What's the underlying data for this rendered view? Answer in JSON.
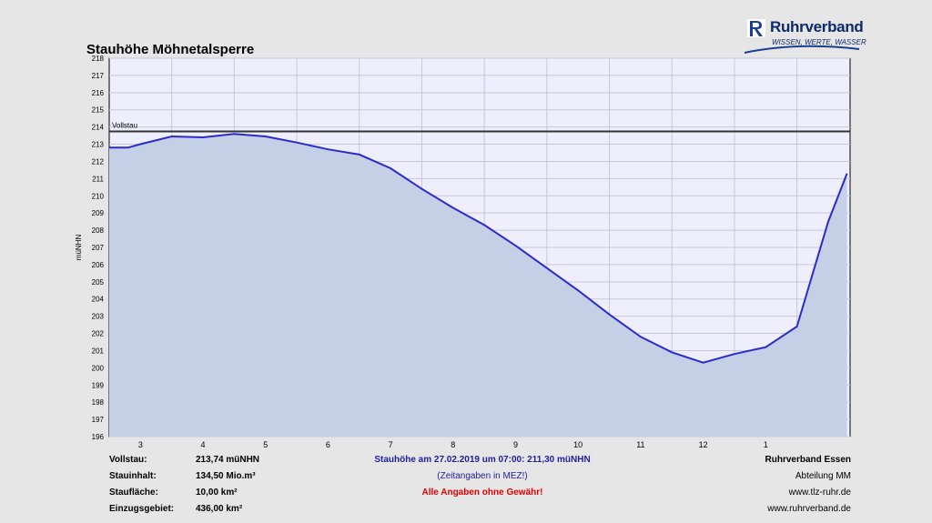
{
  "logo": {
    "name": "Ruhrverband",
    "tagline": "WISSEN, WERTE, WASSER"
  },
  "chart_data": {
    "type": "area",
    "title": "Stauhöhe Möhnetalsperre",
    "ylabel": "müNHN",
    "ylim": [
      196,
      218
    ],
    "yticks": [
      196,
      197,
      198,
      199,
      200,
      201,
      202,
      203,
      204,
      205,
      206,
      207,
      208,
      209,
      210,
      211,
      212,
      213,
      214,
      215,
      216,
      217,
      218
    ],
    "x_categories": [
      "3",
      "4",
      "5",
      "6",
      "7",
      "8",
      "9",
      "10",
      "11",
      "12",
      "1"
    ],
    "reference_line": {
      "label": "Vollstau",
      "value": 213.74
    },
    "grid": true,
    "fill_color": "#c5cfe6",
    "line_color": "#2b2bcc",
    "series": [
      {
        "x": [
          0,
          0.3,
          0.5,
          1,
          1.5,
          2,
          2.5,
          3,
          3.5,
          4,
          4.5,
          5,
          5.5,
          6,
          6.5,
          7,
          7.5,
          8,
          8.5,
          9,
          9.5,
          10,
          10.5,
          11,
          11.5,
          11.8
        ],
        "values": [
          212.8,
          212.8,
          213.0,
          213.45,
          213.4,
          213.6,
          213.45,
          213.1,
          212.7,
          212.4,
          211.6,
          210.4,
          209.3,
          208.3,
          207.1,
          205.8,
          204.5,
          203.1,
          201.8,
          200.9,
          200.3,
          200.8,
          201.2,
          202.4,
          208.5,
          211.3
        ]
      }
    ]
  },
  "info_left": [
    {
      "label": "Vollstau:",
      "value": "213,74 müNHN"
    },
    {
      "label": "Stauinhalt:",
      "value": "134,50 Mio.m³"
    },
    {
      "label": "Staufläche:",
      "value": "10,00 km²"
    },
    {
      "label": "Einzugsgebiet:",
      "value": "436,00 km²"
    }
  ],
  "center": {
    "line1": "Stauhöhe am 27.02.2019 um 07:00: 211,30  müNHN",
    "line2": "(Zeitangaben in MEZ!)",
    "line3": "Alle Angaben ohne Gewähr!"
  },
  "right": {
    "line1": "Ruhrverband Essen",
    "line2": "Abteilung MM",
    "line3": "www.tlz-ruhr.de",
    "line4": "www.ruhrverband.de"
  },
  "colors": {
    "center_text": "#1f1f9a",
    "warning": "#e00000"
  }
}
